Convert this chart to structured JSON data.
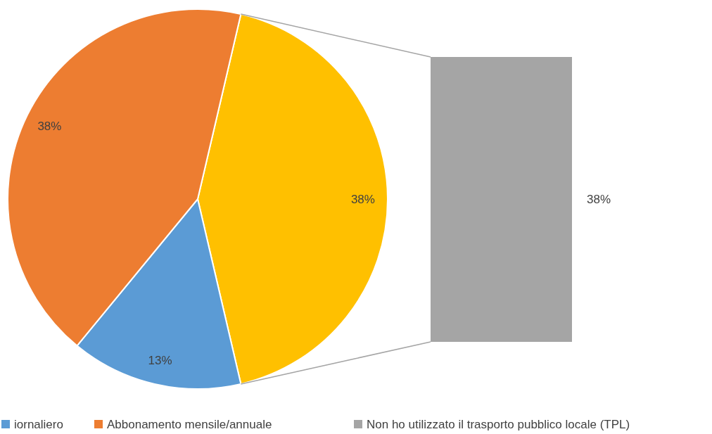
{
  "chart_data": {
    "type": "pie",
    "categories": [
      "iornaliero",
      "Abbonamento mensile/annuale",
      "Non ho utilizzato il trasporto pubblico locale (TPL)"
    ],
    "values": [
      13,
      38,
      38
    ],
    "colors": [
      "#5b9bd5",
      "#ed7d31",
      "#ffc000"
    ],
    "value_labels": [
      "13%",
      "38%",
      "38%"
    ],
    "annotations": [
      "38%"
    ],
    "legend": "bottom"
  }
}
